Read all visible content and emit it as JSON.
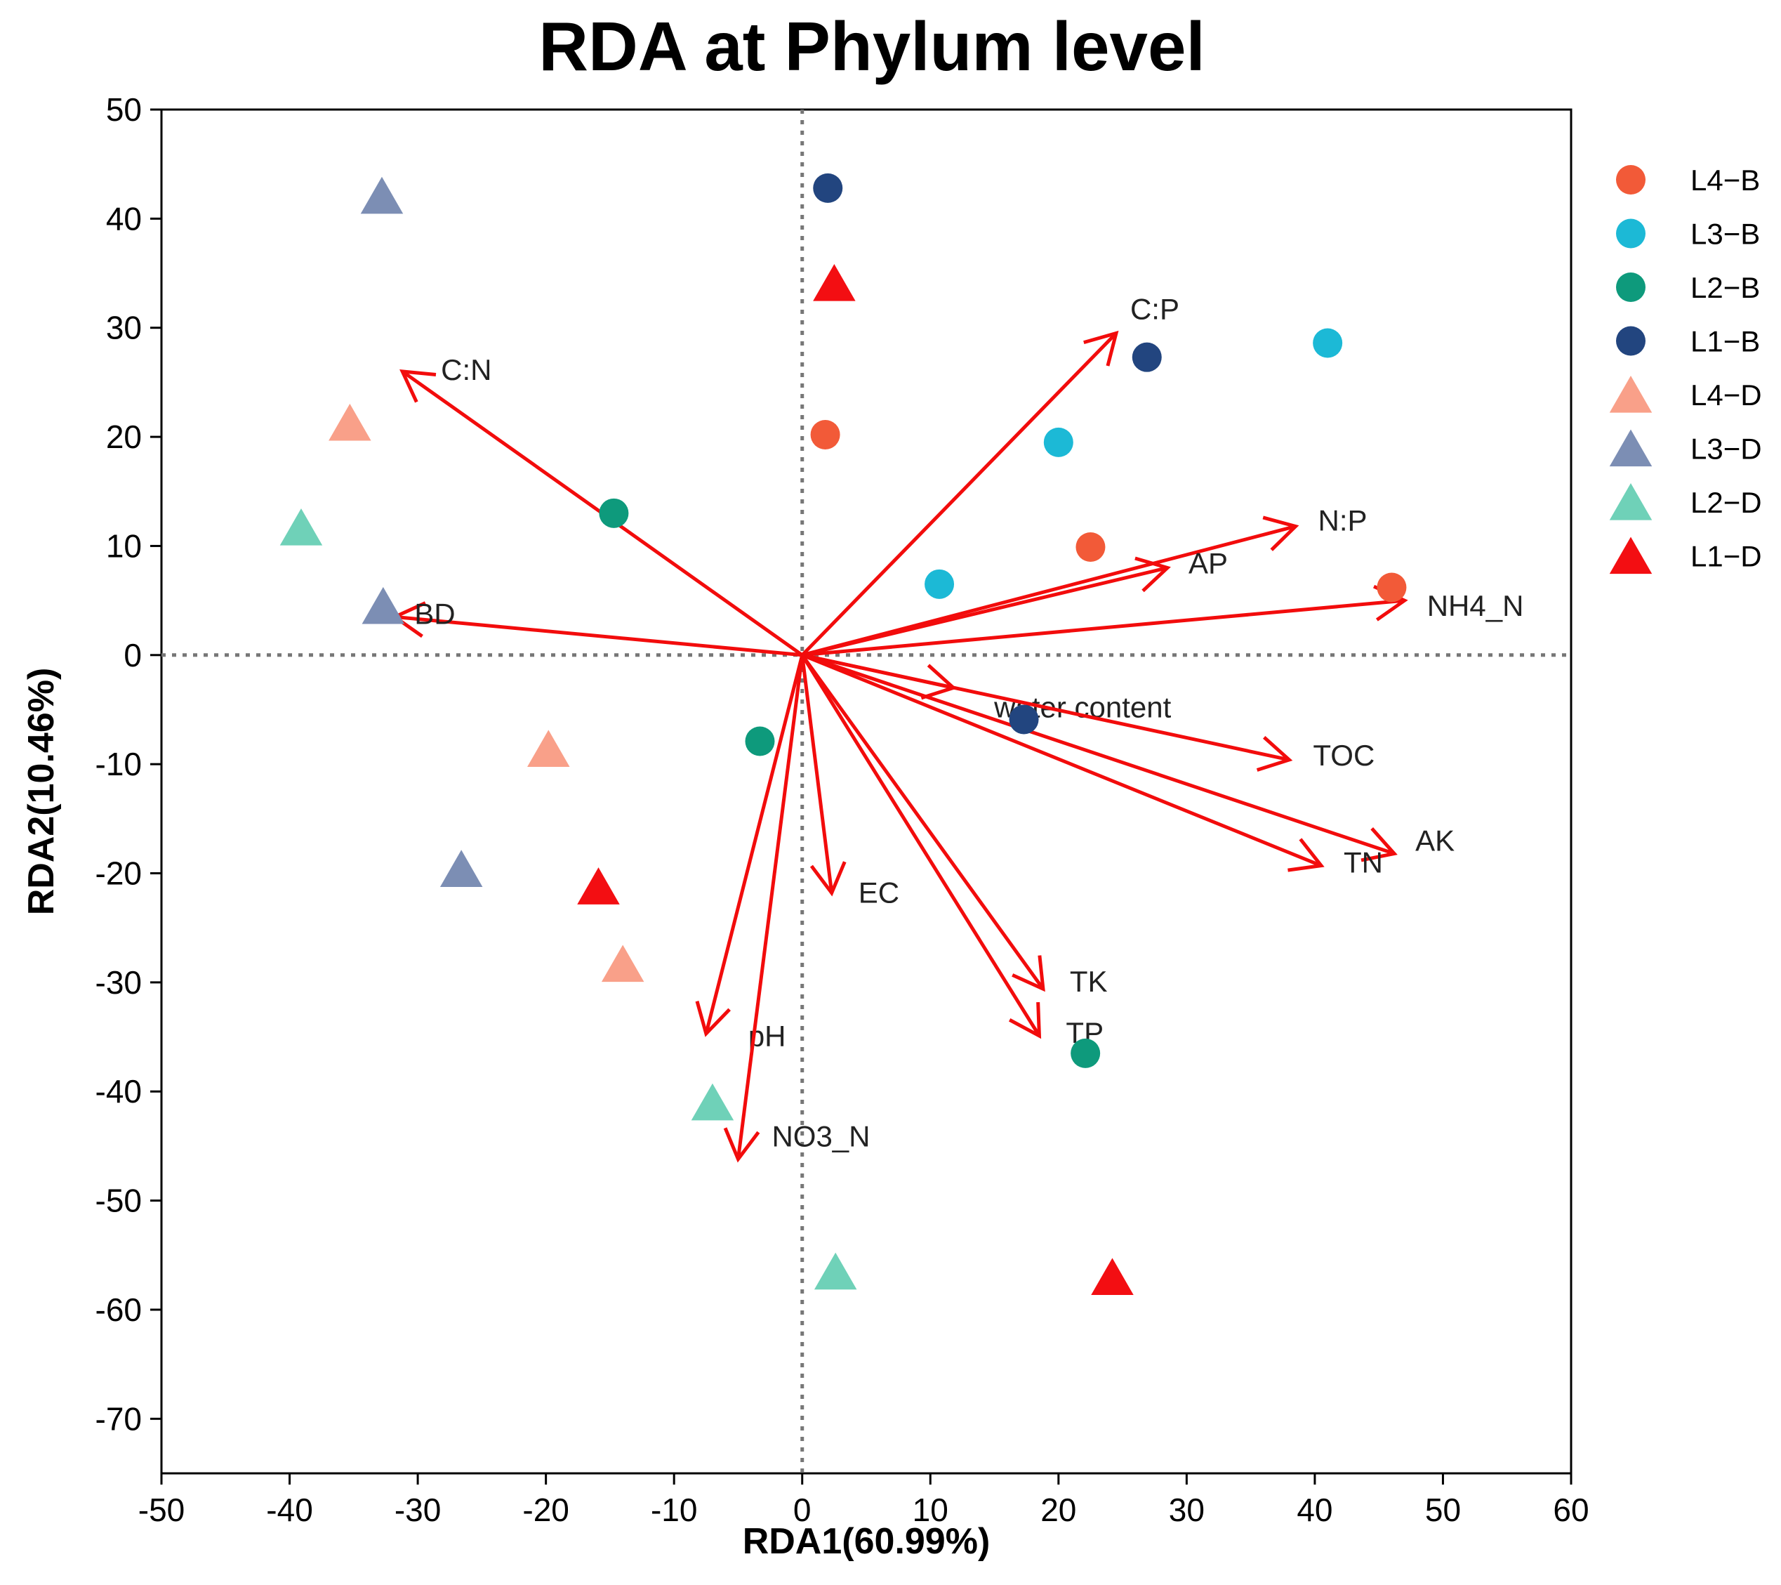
{
  "chart_data": {
    "type": "scatter",
    "title": "RDA at Phylum level",
    "xlabel": "RDA1(60.99%)",
    "ylabel": "RDA2(10.46%)",
    "xlim": [
      -50,
      60
    ],
    "ylim": [
      -75,
      50
    ],
    "xticks": [
      -50,
      -40,
      -30,
      -20,
      -10,
      0,
      10,
      20,
      30,
      40,
      50,
      60
    ],
    "yticks": [
      -70,
      -60,
      -50,
      -40,
      -30,
      -20,
      -10,
      0,
      10,
      20,
      30,
      40,
      50
    ],
    "reference_lines": {
      "x": 0,
      "y": 0,
      "style": "dotted"
    },
    "legend_position": "right",
    "series": [
      {
        "name": "L4−B",
        "shape": "circle",
        "color": "#F25A38",
        "points": [
          [
            1.8,
            20.2
          ],
          [
            22.5,
            9.9
          ],
          [
            46.0,
            6.2
          ]
        ]
      },
      {
        "name": "L3−B",
        "shape": "circle",
        "color": "#1CB9D6",
        "points": [
          [
            41.0,
            28.6
          ],
          [
            20.0,
            19.5
          ],
          [
            10.7,
            6.5
          ]
        ]
      },
      {
        "name": "L2−B",
        "shape": "circle",
        "color": "#0E9A7C",
        "points": [
          [
            -14.7,
            13.0
          ],
          [
            -3.3,
            -7.9
          ],
          [
            22.1,
            -36.5
          ]
        ]
      },
      {
        "name": "L1−B",
        "shape": "circle",
        "color": "#22457F",
        "points": [
          [
            2.0,
            42.8
          ],
          [
            26.9,
            27.3
          ],
          [
            17.3,
            -5.9
          ]
        ]
      },
      {
        "name": "L4−D",
        "shape": "triangle",
        "color": "#F9A089",
        "points": [
          [
            -35.3,
            21.3
          ],
          [
            -19.8,
            -8.6
          ],
          [
            -14.0,
            -28.3
          ]
        ]
      },
      {
        "name": "L3−D",
        "shape": "triangle",
        "color": "#7C8EB4",
        "points": [
          [
            -32.8,
            42.1
          ],
          [
            -32.7,
            4.5
          ],
          [
            -26.6,
            -19.6
          ]
        ]
      },
      {
        "name": "L2−D",
        "shape": "triangle",
        "color": "#6FD1B8",
        "points": [
          [
            -39.1,
            11.7
          ],
          [
            -7.0,
            -41.0
          ],
          [
            2.6,
            -56.5
          ]
        ]
      },
      {
        "name": "L1−D",
        "shape": "triangle",
        "color": "#F30E12",
        "points": [
          [
            2.5,
            34.1
          ],
          [
            -15.9,
            -21.2
          ],
          [
            24.2,
            -57.0
          ]
        ]
      }
    ],
    "vectors": [
      {
        "label": "C:P",
        "end": [
          24.5,
          29.5
        ]
      },
      {
        "label": "C:N",
        "end": [
          -31.2,
          26.0
        ]
      },
      {
        "label": "N:P",
        "end": [
          38.5,
          11.8
        ]
      },
      {
        "label": "AP",
        "end": [
          28.5,
          8.0
        ]
      },
      {
        "label": "NH4_N",
        "end": [
          47.0,
          5.0
        ]
      },
      {
        "label": "BD",
        "end": [
          -31.8,
          3.5
        ]
      },
      {
        "label": "water content",
        "end": [
          11.8,
          -3.0
        ]
      },
      {
        "label": "TOC",
        "end": [
          38.0,
          -9.6
        ]
      },
      {
        "label": "AK",
        "end": [
          46.2,
          -18.2
        ]
      },
      {
        "label": "TN",
        "end": [
          40.5,
          -19.3
        ]
      },
      {
        "label": "EC",
        "end": [
          2.3,
          -21.8
        ]
      },
      {
        "label": "TK",
        "end": [
          18.8,
          -30.6
        ]
      },
      {
        "label": "TP",
        "end": [
          18.5,
          -34.9
        ]
      },
      {
        "label": "pH",
        "end": [
          -7.5,
          -34.7
        ]
      },
      {
        "label": "NO3_N",
        "end": [
          -5.0,
          -46.2
        ]
      }
    ],
    "vector_color": "#F20C0C"
  }
}
